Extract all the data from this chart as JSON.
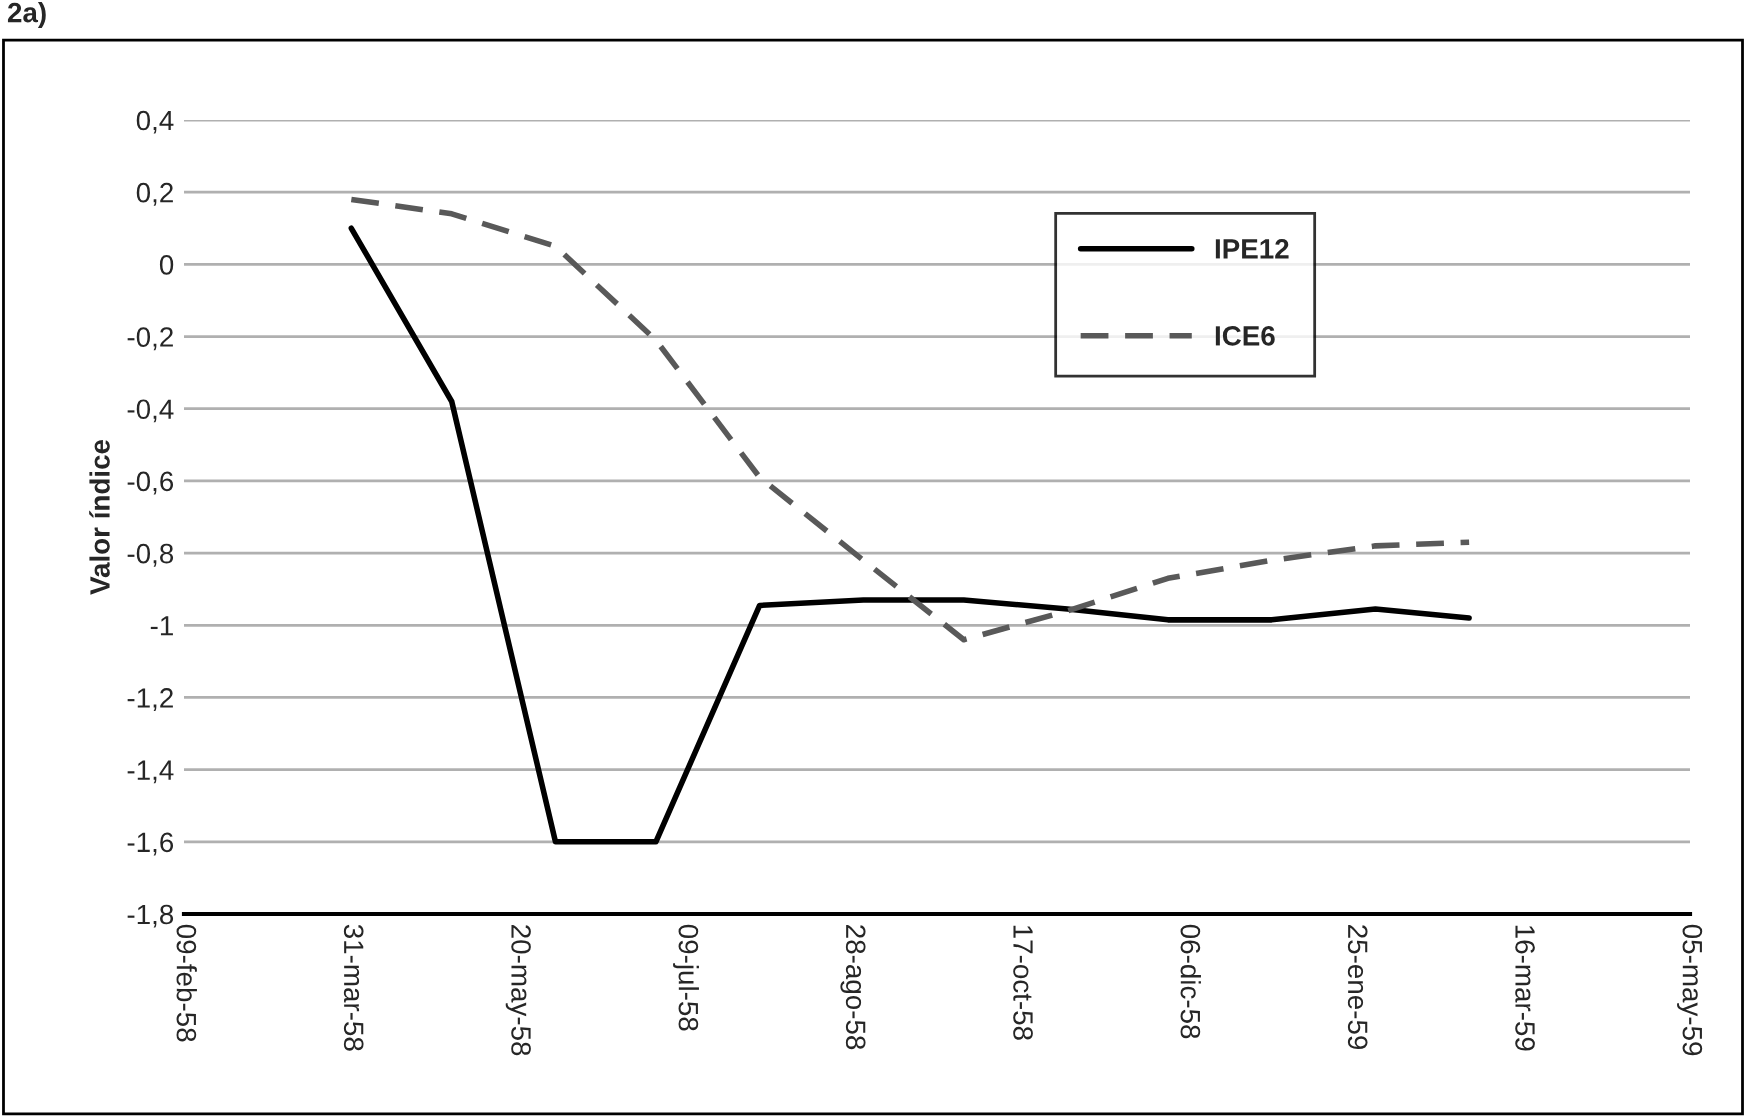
{
  "chart_data": {
    "type": "line",
    "title": "2a)",
    "ylabel": "Valor índice",
    "x": [
      "1958-03-31",
      "1958-04-30",
      "1958-05-31",
      "1958-06-30",
      "1958-07-31",
      "1958-08-31",
      "1958-09-30",
      "1958-10-31",
      "1958-11-30",
      "1958-12-31",
      "1959-01-31",
      "1959-02-28"
    ],
    "series": [
      {
        "name": "IPE12",
        "color": "#000000",
        "line_style": "solid",
        "values": [
          0.1,
          -0.38,
          -1.6,
          -1.6,
          -0.945,
          -0.93,
          -0.93,
          -0.955,
          -0.985,
          -0.985,
          -0.955,
          -0.98
        ]
      },
      {
        "name": "ICE6",
        "color": "#595959",
        "line_style": "dashed",
        "values": [
          0.18,
          0.14,
          0.05,
          -0.21,
          -0.59,
          -0.82,
          -1.04,
          -0.96,
          -0.87,
          -0.82,
          -0.78,
          -0.77
        ]
      }
    ],
    "xlim": [
      "1958-02-09",
      "1959-05-05"
    ],
    "xticks": [
      {
        "value": "1958-02-09",
        "label": "09-feb-58"
      },
      {
        "value": "1958-03-31",
        "label": "31-mar-58"
      },
      {
        "value": "1958-05-20",
        "label": "20-may-58"
      },
      {
        "value": "1958-07-09",
        "label": "09-jul-58"
      },
      {
        "value": "1958-08-28",
        "label": "28-ago-58"
      },
      {
        "value": "1958-10-17",
        "label": "17-oct-58"
      },
      {
        "value": "1958-12-06",
        "label": "06-dic-58"
      },
      {
        "value": "1959-01-25",
        "label": "25-ene-59"
      },
      {
        "value": "1959-03-16",
        "label": "16-mar-59"
      },
      {
        "value": "1959-05-05",
        "label": "05-may-59"
      }
    ],
    "ylim": [
      -1.8,
      0.4
    ],
    "yticks": [
      {
        "value": 0.4,
        "label": "0,4"
      },
      {
        "value": 0.2,
        "label": "0,2"
      },
      {
        "value": 0,
        "label": "0"
      },
      {
        "value": -0.2,
        "label": "-0,2"
      },
      {
        "value": -0.4,
        "label": "-0,4"
      },
      {
        "value": -0.6,
        "label": "-0,6"
      },
      {
        "value": -0.8,
        "label": "-0,8"
      },
      {
        "value": -1,
        "label": "-1"
      },
      {
        "value": -1.2,
        "label": "-1,2"
      },
      {
        "value": -1.4,
        "label": "-1,4"
      },
      {
        "value": -1.6,
        "label": "-1,6"
      },
      {
        "value": -1.8,
        "label": "-1,8"
      }
    ],
    "grid": "y",
    "legend": "top right",
    "marker": "none"
  }
}
